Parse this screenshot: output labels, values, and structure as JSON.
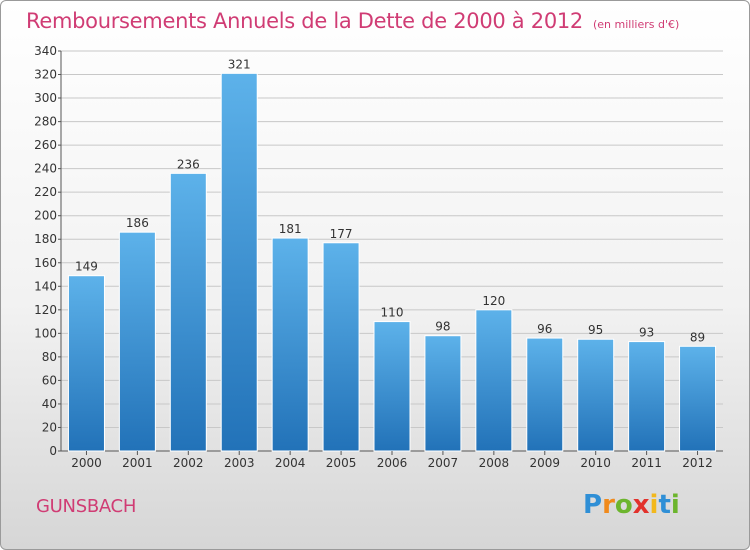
{
  "title": "Remboursements Annuels de la Dette de 2000 à 2012",
  "subtitle": "(en milliers d'€)",
  "commune": "GUNSBACH",
  "logo": {
    "letters": [
      "P",
      "r",
      "o",
      "x",
      "i",
      "t",
      "i"
    ],
    "colors": [
      "#2f8fd6",
      "#f08a1c",
      "#6cb52d",
      "#e2322c",
      "#f2b81c",
      "#2f8fd6",
      "#6cb52d"
    ]
  },
  "colors": {
    "accent": "#d03c74",
    "bar_top": "#5db2ea",
    "bar_bottom": "#2272b8",
    "grid": "#c8c8c8"
  },
  "chart_data": {
    "type": "bar",
    "categories": [
      "2000",
      "2001",
      "2002",
      "2003",
      "2004",
      "2005",
      "2006",
      "2007",
      "2008",
      "2009",
      "2010",
      "2011",
      "2012"
    ],
    "values": [
      149,
      186,
      236,
      321,
      181,
      177,
      110,
      98,
      120,
      96,
      95,
      93,
      89
    ],
    "ylim": [
      0,
      340
    ],
    "ytick_step": 20,
    "grid": true,
    "data_labels": true
  }
}
